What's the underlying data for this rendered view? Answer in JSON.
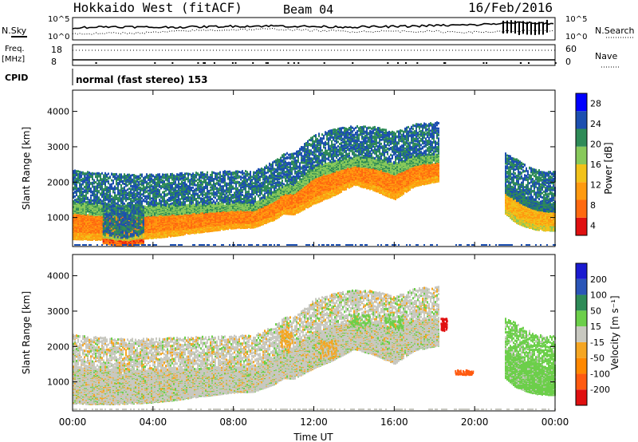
{
  "header": {
    "station": "Hokkaido West (fitACF)",
    "beam": "Beam 04",
    "date": "16/Feb/2016"
  },
  "status": {
    "nsky_label": "N.Sky",
    "nsearch_label": "N.Search",
    "noise_ticks": [
      "10^5",
      "10^0"
    ],
    "freq_label_1": "Freq.",
    "freq_label_2": "[MHz]",
    "freq_ticks": [
      "18",
      "8"
    ],
    "nave_label": "Nave",
    "nave_ticks": [
      "60",
      "0"
    ],
    "cpid_label": "CPID",
    "cpid_value": "normal (fast stereo) 153"
  },
  "chart_data": [
    {
      "type": "heatmap",
      "panel": "power",
      "ylabel": "Slant Range [km]",
      "yticks": [
        1000,
        2000,
        3000,
        4000
      ],
      "ylim": [
        180,
        4600
      ],
      "xlim_hours": [
        0,
        24
      ],
      "colorbar": {
        "label": "Power [dB]",
        "ticks": [
          4,
          8,
          12,
          16,
          20,
          24,
          28
        ],
        "levels": [
          {
            "value": 2,
            "color": "#0000ff"
          },
          {
            "value": 6,
            "color": "#1c4fb0"
          },
          {
            "value": 10,
            "color": "#2e8b57"
          },
          {
            "value": 14,
            "color": "#88c95b"
          },
          {
            "value": 18,
            "color": "#f2c21a"
          },
          {
            "value": 22,
            "color": "#ff9a10"
          },
          {
            "value": 26,
            "color": "#ff6a10"
          },
          {
            "value": 30,
            "color": "#e01010"
          }
        ]
      },
      "bands": [
        {
          "t": [
            0,
            1,
            2,
            3,
            4,
            5,
            6,
            7,
            8,
            9,
            10,
            10.5,
            11,
            12,
            13,
            14,
            15,
            16,
            17,
            18.2
          ],
          "r": [
            900,
            860,
            840,
            840,
            860,
            900,
            950,
            1000,
            1050,
            1050,
            1300,
            1500,
            1500,
            1900,
            2100,
            2300,
            2200,
            2000,
            2300,
            2400
          ],
          "w": [
            520,
            500,
            480,
            460,
            450,
            430,
            400,
            380,
            360,
            340,
            380,
            400,
            420,
            520,
            480,
            380,
            450,
            500,
            420,
            380
          ],
          "level": 24
        },
        {
          "t": [
            21.5,
            22,
            22.5,
            23,
            23.5,
            24
          ],
          "r": [
            1500,
            1300,
            1150,
            1050,
            1000,
            1000
          ],
          "w": [
            400,
            450,
            420,
            400,
            380,
            380
          ],
          "level": 20
        },
        {
          "t": [
            1.5,
            2,
            2.5,
            3,
            3.5
          ],
          "r": [
            380,
            330,
            300,
            320,
            380
          ],
          "w": [
            120,
            110,
            100,
            110,
            120
          ],
          "level": 27
        }
      ]
    },
    {
      "type": "heatmap",
      "panel": "velocity",
      "xlabel": "Time UT",
      "ylabel": "Slant Range [km]",
      "yticks": [
        1000,
        2000,
        3000,
        4000
      ],
      "xticks": [
        "00:00",
        "04:00",
        "08:00",
        "12:00",
        "16:00",
        "20:00",
        "00:00"
      ],
      "ylim": [
        180,
        4600
      ],
      "xlim_hours": [
        0,
        24
      ],
      "colorbar": {
        "label": "Velocity [m s⁻¹]",
        "ticks": [
          "200",
          "100",
          "50",
          "15",
          "-15",
          "-50",
          "-100",
          "-200"
        ],
        "levels": [
          {
            "value": 250,
            "color": "#1a1ad0"
          },
          {
            "value": 150,
            "color": "#2a55b8"
          },
          {
            "value": 75,
            "color": "#2e8b57"
          },
          {
            "value": 30,
            "color": "#6ccf4a"
          },
          {
            "value": 0,
            "color": "#c8c8c0"
          },
          {
            "value": -30,
            "color": "#f5a623"
          },
          {
            "value": -75,
            "color": "#ff8800"
          },
          {
            "value": -150,
            "color": "#ff5a10"
          },
          {
            "value": -250,
            "color": "#e01010"
          }
        ]
      },
      "bands": [
        {
          "t": [
            0,
            1,
            2,
            3,
            4,
            5,
            6,
            7,
            8,
            9,
            10,
            10.5,
            11,
            12,
            13,
            14,
            15,
            16,
            17,
            18.2
          ],
          "r": [
            900,
            860,
            840,
            840,
            860,
            900,
            950,
            1000,
            1050,
            1050,
            1300,
            1500,
            1500,
            1900,
            2100,
            2300,
            2200,
            2000,
            2300,
            2400
          ],
          "w": [
            520,
            500,
            480,
            460,
            450,
            430,
            400,
            380,
            360,
            340,
            380,
            400,
            420,
            520,
            480,
            380,
            450,
            500,
            420,
            380
          ],
          "level": 0
        },
        {
          "t": [
            21.5,
            22,
            22.5,
            23,
            23.5,
            24
          ],
          "r": [
            1500,
            1300,
            1150,
            1050,
            1000,
            1000
          ],
          "w": [
            400,
            450,
            420,
            400,
            380,
            380
          ],
          "level": 30
        }
      ],
      "patches": [
        {
          "t": 10.3,
          "r": 2200,
          "dt": 0.6,
          "dr": 500,
          "level": -30
        },
        {
          "t": 12.3,
          "r": 1900,
          "dt": 0.8,
          "dr": 500,
          "level": -30
        },
        {
          "t": 18.3,
          "r": 2600,
          "dt": 0.3,
          "dr": 350,
          "level": -250
        },
        {
          "t": 19.0,
          "r": 1250,
          "dt": 0.9,
          "dr": 120,
          "level": -150
        },
        {
          "t": 13.8,
          "r": 2700,
          "dt": 1.0,
          "dr": 350,
          "level": 30
        },
        {
          "t": 15.5,
          "r": 2700,
          "dt": 0.9,
          "dr": 400,
          "level": 30
        }
      ]
    }
  ],
  "series_top": {
    "nsky": [
      [
        0,
        2.8
      ],
      [
        2,
        3.1
      ],
      [
        4,
        2.9
      ],
      [
        6,
        3.0
      ],
      [
        8,
        3.2
      ],
      [
        10,
        3.3
      ],
      [
        12,
        3.1
      ],
      [
        14,
        3.0
      ],
      [
        16,
        3.1
      ],
      [
        18,
        3.4
      ],
      [
        20,
        3.6
      ],
      [
        22,
        4.2
      ],
      [
        24,
        4.0
      ]
    ],
    "nsearch": [
      [
        0,
        1.0
      ],
      [
        2,
        1.2
      ],
      [
        4,
        1.4
      ],
      [
        6,
        2.0
      ],
      [
        8,
        2.2
      ],
      [
        10,
        2.4
      ],
      [
        12,
        2.0
      ],
      [
        14,
        1.7
      ],
      [
        16,
        1.8
      ],
      [
        18,
        1.7
      ],
      [
        20,
        1.5
      ],
      [
        22,
        1.8
      ],
      [
        24,
        2.0
      ]
    ],
    "freq_mhz": 10.5,
    "nave": 25
  }
}
